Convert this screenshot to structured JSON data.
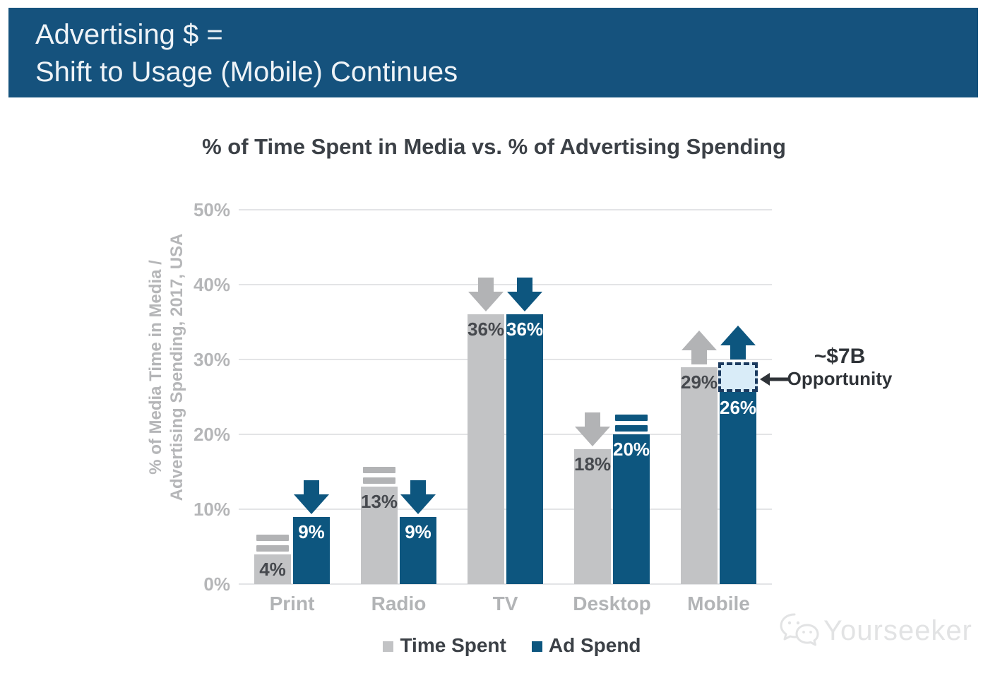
{
  "header": {
    "line1": "Advertising $ =",
    "line2": "Shift to Usage (Mobile) Continues"
  },
  "chart_data": {
    "type": "bar",
    "title": "% of Time Spent in Media vs. % of Advertising Spending",
    "ylabel": "% of Media Time in Media / Advertising Spending, 2017, USA",
    "ylabel_lines": [
      "% of Media Time in Media /",
      "Advertising Spending, 2017, USA"
    ],
    "categories": [
      "Print",
      "Radio",
      "TV",
      "Desktop",
      "Mobile"
    ],
    "series": [
      {
        "name": "Time Spent",
        "color": "#c2c3c5",
        "icon_color": "#b2b3b5",
        "label_color": "#46494e",
        "values": [
          4,
          13,
          36,
          18,
          29
        ],
        "trends": [
          "flat",
          "flat",
          "down",
          "down",
          "up"
        ]
      },
      {
        "name": "Ad Spend",
        "color": "#0d567f",
        "icon_color": "#0d567f",
        "label_color": "#ffffff",
        "values": [
          9,
          9,
          36,
          20,
          26
        ],
        "trends": [
          "down",
          "down",
          "down",
          "flat",
          "up"
        ]
      }
    ],
    "value_suffix": "%",
    "y_ticks": [
      "0%",
      "10%",
      "20%",
      "30%",
      "40%",
      "50%"
    ],
    "ylim": [
      0,
      50
    ],
    "grid": true,
    "legend_position": "bottom",
    "annotation": {
      "line1": "~$7B",
      "line2": "Opportunity",
      "category": "Mobile",
      "series": "Ad Spend",
      "box_top_pct": 29.6,
      "box_bottom_pct": 25.7
    }
  },
  "watermark": {
    "text": "Yourseeker"
  },
  "colors": {
    "header_bg": "#15527d",
    "header_text": "#eef3f7",
    "bar_gray": "#c2c3c5",
    "bar_blue": "#0d567f",
    "title_text": "#3b4046",
    "axis_text": "#b5b6b8",
    "gridline": "#e3e4e6",
    "box_fill": "#d9ecf8",
    "box_border": "#1b3a5f",
    "annotation_text": "#2f3338",
    "watermark_text": "#e2e3e4"
  }
}
